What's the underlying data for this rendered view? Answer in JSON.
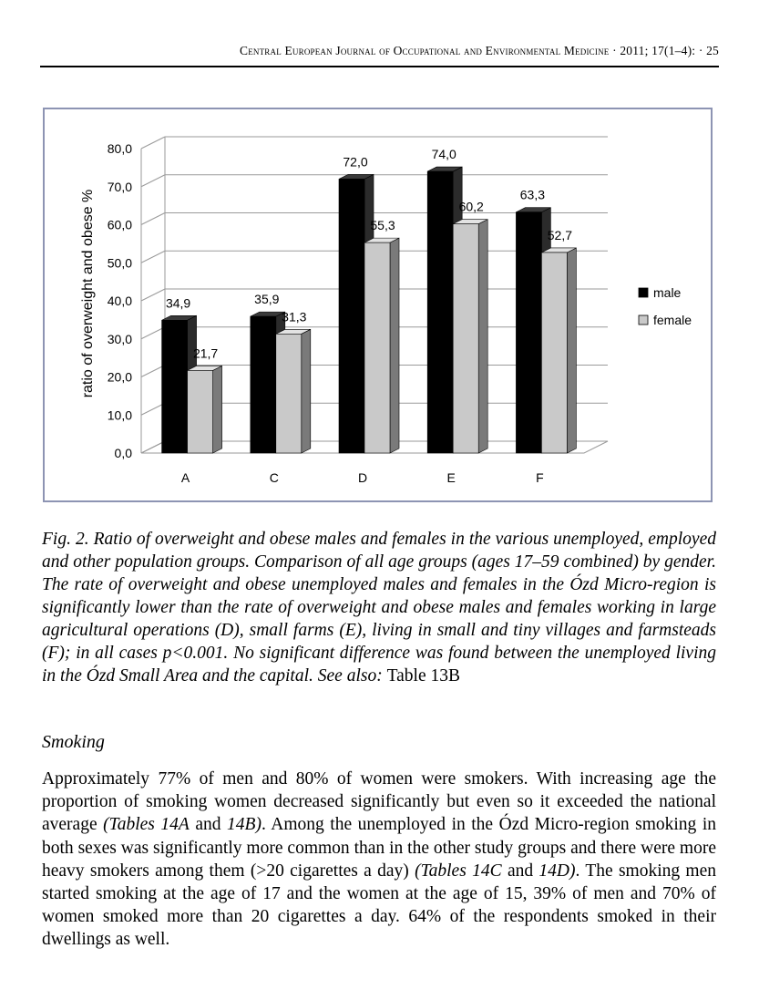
{
  "header": {
    "journal": "Central European Journal of Occupational and Environmental Medicine",
    "citation": "· 2011; 17(1–4): · 25"
  },
  "chart_data": {
    "type": "bar",
    "categories": [
      "A",
      "C",
      "D",
      "E",
      "F"
    ],
    "series": [
      {
        "name": "male",
        "values": [
          34.9,
          35.9,
          72.0,
          74.0,
          63.3
        ],
        "labels": [
          "34,9",
          "35,9",
          "72,0",
          "74,0",
          "63,3"
        ],
        "color": "#000000"
      },
      {
        "name": "female",
        "values": [
          21.7,
          31.3,
          55.3,
          60.2,
          52.7
        ],
        "labels": [
          "21,7",
          "31,3",
          "55,3",
          "60,2",
          "52,7"
        ],
        "color": "#c8c8c8"
      }
    ],
    "ylabel": "ratio of overweight and obese %",
    "xlabel": "",
    "title": "",
    "ylim": [
      0,
      80
    ],
    "yticks": [
      0,
      10,
      20,
      30,
      40,
      50,
      60,
      70,
      80
    ],
    "ytick_labels": [
      "0,0",
      "10,0",
      "20,0",
      "30,0",
      "40,0",
      "50,0",
      "60,0",
      "70,0",
      "80,0"
    ],
    "legend_position": "right",
    "grid": true
  },
  "caption": {
    "text": "Fig. 2. Ratio of overweight and obese males and females in the various unemployed, employed and other population groups. Comparison of all age groups (ages 17–59 combined) by gender. The rate of overweight and obese unemployed males and females in the Ózd Micro-region is significantly lower than the rate of overweight and obese males and females working in large agricultural operations (D), small farms (E), living in small and tiny villages and farmsteads (F); in all cases p<0.001. No significant difference was found between the unemployed living in the Ózd Small Area and the capital. See also:",
    "reference": "Table 13B"
  },
  "section": {
    "heading": "Smoking"
  },
  "paragraph": {
    "p1": "Approximately 77% of men and 80% of women were smokers. With increasing age the proportion of smoking women decreased significantly but even so it exceeded the national average",
    "ref1a": "(Tables 14A",
    "and1": "and",
    "ref1b": "14B)",
    "p2": ". Among the unemployed in the Ózd Micro-region smoking in both sexes was significantly more common than in the other study groups and there were more heavy smokers among them (>20 cigarettes a day)",
    "ref2a": "(Tables 14C",
    "and2": "and",
    "ref2b": "14D)",
    "p3": ". The smoking men started smoking at the age of 17 and the women at the age of 15, 39% of men and 70% of women smoked more than 20 cigarettes a day. 64% of the respondents smoked in their dwellings as well."
  }
}
